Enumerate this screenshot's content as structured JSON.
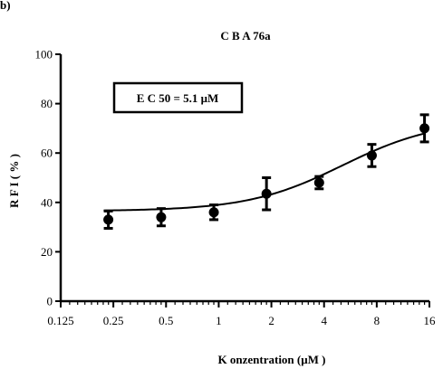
{
  "figure": {
    "panel_label": "b)",
    "title": "C B A 76a"
  },
  "annotation": {
    "text": "E C 50 = 5.1  μM"
  },
  "chart_data": {
    "type": "scatter",
    "title": "C B A 76a",
    "xlabel": "K onzentration  (μM )",
    "ylabel": "R F I  ( % )",
    "x_scale": "log2",
    "xlim": [
      0.125,
      16
    ],
    "ylim": [
      0,
      100
    ],
    "x_ticks": [
      0.125,
      0.25,
      0.5,
      1,
      2,
      4,
      8,
      16
    ],
    "x_tick_labels": [
      "0.125",
      "0.25",
      "0.5",
      "1",
      "2",
      "4",
      "8",
      "16"
    ],
    "y_ticks": [
      0,
      20,
      40,
      60,
      80,
      100
    ],
    "y_tick_labels": [
      "0",
      "20",
      "40",
      "60",
      "80",
      "100"
    ],
    "grid": false,
    "series": [
      {
        "points": [
          {
            "x": 0.234,
            "y": 33,
            "err": 3.5
          },
          {
            "x": 0.469,
            "y": 34,
            "err": 3.5
          },
          {
            "x": 0.938,
            "y": 36,
            "err": 3
          },
          {
            "x": 1.875,
            "y": 43.5,
            "err": 6.5
          },
          {
            "x": 3.75,
            "y": 48,
            "err": 2.5
          },
          {
            "x": 7.5,
            "y": 59,
            "err": 4.5
          },
          {
            "x": 15,
            "y": 70,
            "err": 5.5
          }
        ],
        "fit": {
          "model": "sigmoid",
          "bottom": 36.5,
          "top": 73.5,
          "ec50": 5.1,
          "hill": 1.6
        }
      }
    ]
  }
}
